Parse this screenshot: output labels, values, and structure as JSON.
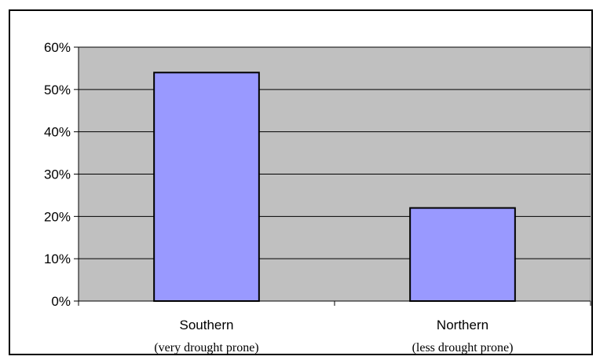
{
  "chart_data": {
    "type": "bar",
    "categories": [
      "Southern",
      "Northern"
    ],
    "category_sublabels": [
      "(very drought prone)",
      "(less drought prone)"
    ],
    "values": [
      54,
      22
    ],
    "value_unit": "%",
    "ylim": [
      0,
      60
    ],
    "yticks": [
      0,
      10,
      20,
      30,
      40,
      50,
      60
    ],
    "ytick_labels": [
      "0%",
      "10%",
      "20%",
      "30%",
      "40%",
      "50%",
      "60%"
    ],
    "title": "",
    "xlabel": "",
    "ylabel": "",
    "grid": true,
    "legend": "none",
    "colors": {
      "plot_background": "#c0c0c0",
      "bar_fill": "#9999ff",
      "bar_stroke": "#000000",
      "gridline": "#000000"
    }
  }
}
